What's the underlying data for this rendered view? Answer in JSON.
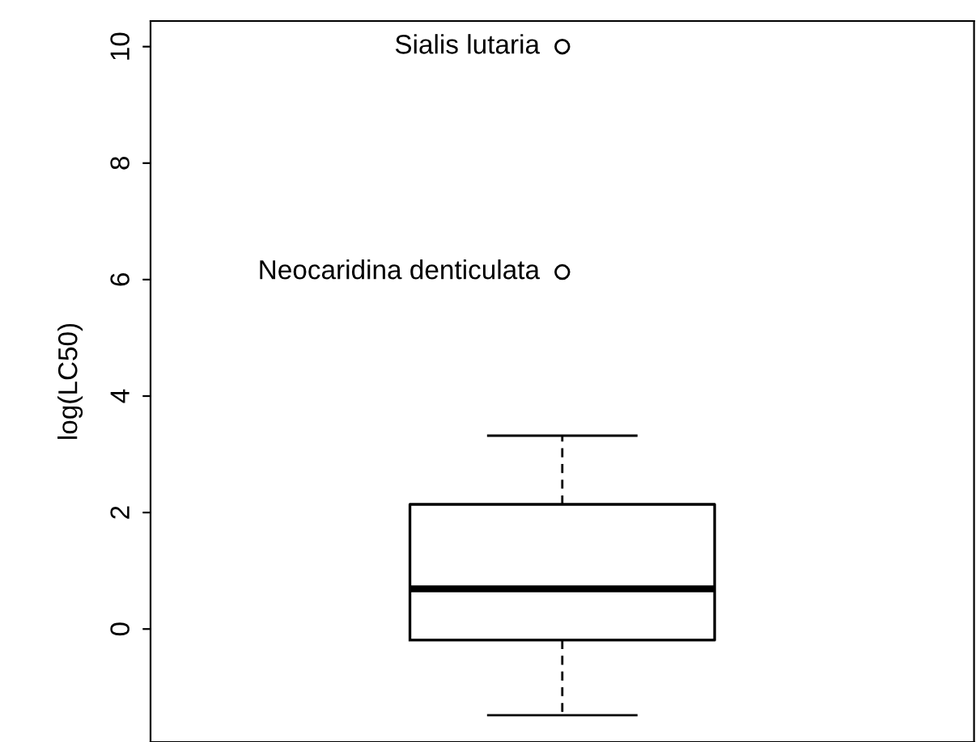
{
  "chart_data": {
    "type": "box",
    "ylabel": "log(LC50)",
    "categories": [
      null
    ],
    "boxes": [
      {
        "low": -1.48,
        "q1": -0.19,
        "median": 0.69,
        "q3": 2.14,
        "high": 3.32,
        "outliers": [
          10.0,
          6.13
        ]
      }
    ],
    "annotations": [
      "Sialis lutaria",
      "Neocaridina denticulata"
    ],
    "ylim": [
      -1.94,
      10.44
    ],
    "yticks": [
      0,
      2,
      4,
      6,
      8,
      10
    ],
    "tick_labels": "y",
    "grid": false
  }
}
